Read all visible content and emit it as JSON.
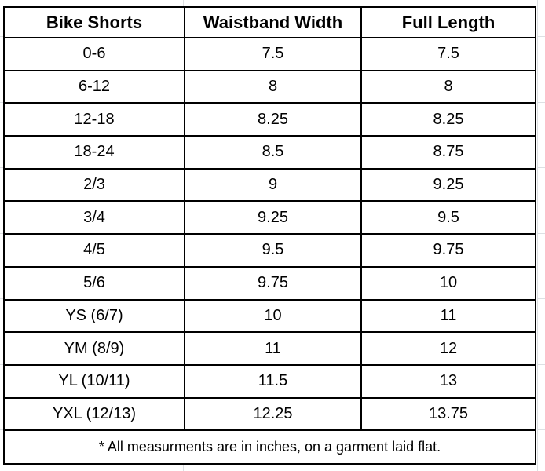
{
  "sheet": {
    "background_color": "#ffffff",
    "gridline_color": "#dde0e3",
    "table_border_color": "#000000",
    "text_color": "#000000"
  },
  "table": {
    "columns": [
      "Bike Shorts",
      "Waistband Width",
      "Full Length"
    ],
    "rows": [
      {
        "size": "0-6",
        "waistband": "7.5",
        "full_length": "7.5"
      },
      {
        "size": "6-12",
        "waistband": "8",
        "full_length": "8"
      },
      {
        "size": "12-18",
        "waistband": "8.25",
        "full_length": "8.25"
      },
      {
        "size": "18-24",
        "waistband": "8.5",
        "full_length": "8.75"
      },
      {
        "size": "2/3",
        "waistband": "9",
        "full_length": "9.25"
      },
      {
        "size": "3/4",
        "waistband": "9.25",
        "full_length": "9.5"
      },
      {
        "size": "4/5",
        "waistband": "9.5",
        "full_length": "9.75"
      },
      {
        "size": "5/6",
        "waistband": "9.75",
        "full_length": "10"
      },
      {
        "size": "YS (6/7)",
        "waistband": "10",
        "full_length": "11"
      },
      {
        "size": "YM (8/9)",
        "waistband": "11",
        "full_length": "12"
      },
      {
        "size": "YL (10/11)",
        "waistband": "11.5",
        "full_length": "13"
      },
      {
        "size": "YXL (12/13)",
        "waistband": "12.25",
        "full_length": "13.75"
      }
    ],
    "footnote": "* All measurments are in inches, on a garment laid flat."
  }
}
